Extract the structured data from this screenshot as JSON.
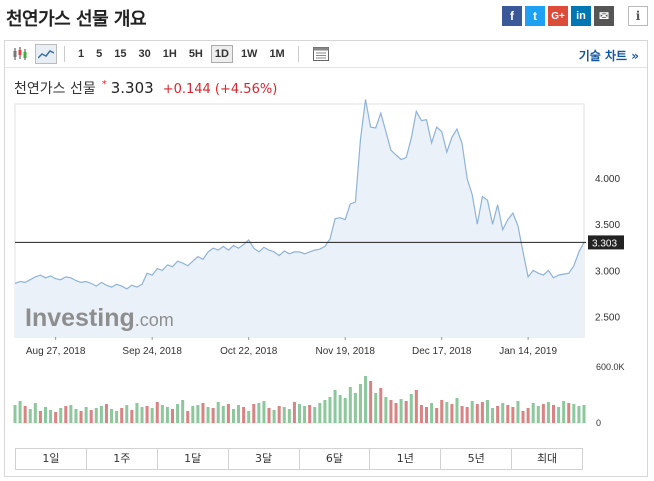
{
  "header": {
    "title": "천연가스 선물 개요",
    "share": {
      "facebook": "f",
      "twitter": "t",
      "google": "G+",
      "linkedin": "in",
      "email": "✉",
      "info": "i"
    }
  },
  "toolbar": {
    "timeframes": [
      "1",
      "5",
      "15",
      "30",
      "1H",
      "5H",
      "1D",
      "1W",
      "1M"
    ],
    "active_timeframe": "1D",
    "tech_chart_link": "기술 차트 »"
  },
  "quote": {
    "name": "천연가스 선물",
    "star": "*",
    "price": "3.303",
    "change": "+0.144 (+4.56%)"
  },
  "watermark": {
    "brand": "Investing",
    "suffix": ".com"
  },
  "ranges": [
    "1일",
    "1주",
    "1달",
    "3달",
    "6달",
    "1년",
    "5년",
    "최대"
  ],
  "colors": {
    "line": "#8fb3d9",
    "fill": "#eaf1f9",
    "up": "#8cc89c",
    "down": "#d98383",
    "current": "#222222"
  },
  "chart_data": {
    "type": "area",
    "x_tick_labels": [
      "Aug 27, 2018",
      "Sep 24, 2018",
      "Oct 22, 2018",
      "Nov 19, 2018",
      "Dec 17, 2018",
      "Jan 14, 2019"
    ],
    "x_tick_index": [
      8,
      27,
      46,
      65,
      84,
      101
    ],
    "y_tick_labels": [
      "4.000",
      "3.500",
      "3.000",
      "2.500"
    ],
    "y_ticks": [
      4.0,
      3.5,
      3.0,
      2.5
    ],
    "ylim": [
      2.28,
      4.8
    ],
    "current_value": 3.303,
    "current_label": "3.303",
    "values": [
      2.86,
      2.88,
      2.87,
      2.9,
      2.93,
      2.95,
      2.92,
      2.94,
      2.91,
      2.9,
      2.93,
      2.92,
      2.89,
      2.87,
      2.88,
      2.86,
      2.83,
      2.87,
      2.84,
      2.82,
      2.85,
      2.83,
      2.8,
      2.84,
      2.82,
      2.85,
      2.97,
      2.95,
      3.02,
      3.0,
      3.06,
      3.04,
      3.1,
      3.08,
      3.05,
      3.1,
      3.15,
      3.12,
      3.2,
      3.24,
      3.22,
      3.26,
      3.22,
      3.27,
      3.24,
      3.28,
      3.33,
      3.24,
      3.2,
      3.25,
      3.22,
      3.2,
      3.16,
      3.21,
      3.18,
      3.2,
      3.2,
      3.18,
      3.2,
      3.22,
      3.23,
      3.26,
      3.34,
      3.56,
      3.57,
      3.55,
      3.72,
      3.74,
      4.42,
      4.85,
      4.55,
      4.54,
      4.7,
      4.5,
      4.3,
      4.25,
      4.2,
      4.22,
      4.43,
      4.72,
      4.62,
      4.63,
      4.38,
      4.55,
      4.5,
      4.28,
      4.44,
      4.53,
      4.37,
      3.99,
      3.82,
      3.5,
      3.8,
      3.76,
      3.5,
      3.71,
      3.44,
      3.55,
      3.62,
      3.48,
      3.2,
      2.93,
      3.0,
      2.97,
      2.95,
      3.0,
      2.92,
      2.95,
      2.96,
      2.97,
      3.05,
      3.2,
      3.303
    ],
    "volume_label": "600.0K",
    "volume_zero_label": "0",
    "volume_max": 600000,
    "volume": [
      180,
      220,
      170,
      140,
      200,
      120,
      160,
      130,
      110,
      150,
      170,
      180,
      140,
      120,
      160,
      130,
      150,
      170,
      190,
      140,
      120,
      150,
      180,
      130,
      200,
      160,
      170,
      150,
      210,
      180,
      160,
      140,
      190,
      230,
      120,
      170,
      180,
      200,
      160,
      150,
      210,
      170,
      190,
      140,
      180,
      160,
      120,
      190,
      200,
      220,
      150,
      130,
      170,
      160,
      140,
      210,
      190,
      170,
      180,
      160,
      200,
      230,
      260,
      330,
      280,
      250,
      360,
      300,
      390,
      470,
      420,
      300,
      350,
      260,
      230,
      200,
      240,
      220,
      290,
      330,
      180,
      160,
      200,
      150,
      230,
      210,
      190,
      250,
      170,
      160,
      220,
      190,
      210,
      230,
      150,
      170,
      200,
      180,
      160,
      220,
      120,
      150,
      200,
      170,
      190,
      210,
      180,
      160,
      220,
      200,
      190,
      170,
      180
    ],
    "volume_dir": [
      "u",
      "u",
      "d",
      "u",
      "u",
      "d",
      "u",
      "u",
      "d",
      "u",
      "d",
      "u",
      "u",
      "d",
      "u",
      "d",
      "u",
      "u",
      "d",
      "u",
      "u",
      "d",
      "u",
      "d",
      "u",
      "u",
      "d",
      "u",
      "d",
      "u",
      "u",
      "d",
      "u",
      "u",
      "d",
      "u",
      "u",
      "d",
      "u",
      "d",
      "u",
      "u",
      "d",
      "u",
      "u",
      "d",
      "u",
      "d",
      "u",
      "u",
      "d",
      "u",
      "d",
      "u",
      "u",
      "d",
      "u",
      "u",
      "d",
      "u",
      "u",
      "u",
      "u",
      "u",
      "u",
      "u",
      "u",
      "u",
      "u",
      "u",
      "d",
      "u",
      "d",
      "u",
      "d",
      "d",
      "u",
      "d",
      "u",
      "d",
      "d",
      "d",
      "u",
      "d",
      "d",
      "u",
      "d",
      "u",
      "d",
      "d",
      "u",
      "d",
      "d",
      "u",
      "u",
      "d",
      "u",
      "d",
      "d",
      "u",
      "d",
      "d",
      "u",
      "u",
      "d",
      "u",
      "d",
      "u",
      "u",
      "d",
      "u",
      "u",
      "u"
    ]
  }
}
